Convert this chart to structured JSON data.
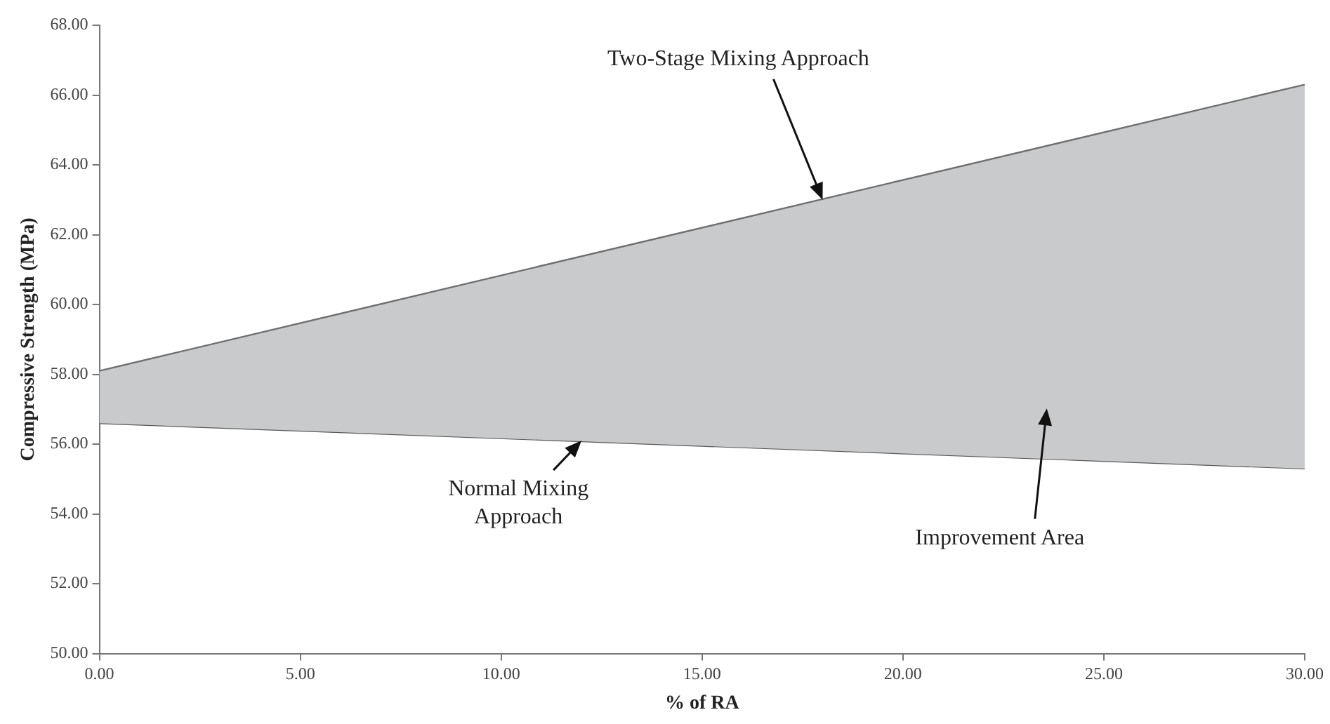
{
  "chart_data": {
    "type": "line",
    "xlabel": "% of RA",
    "ylabel": "Compressive Strength (MPa)",
    "x": [
      0,
      30
    ],
    "series": [
      {
        "type": "line",
        "color": "#5a5a5a",
        "values": [
          56.6,
          55.3
        ]
      },
      {
        "type": "area",
        "color": "#c8cacc",
        "values": [
          58.1,
          66.3
        ]
      }
    ],
    "xlim": [
      0,
      30
    ],
    "xticks": [
      {
        "value": 0,
        "label": "0.00"
      },
      {
        "value": 5,
        "label": "5.00"
      },
      {
        "value": 10,
        "label": "10.00"
      },
      {
        "value": 15,
        "label": "15.00"
      },
      {
        "value": 20,
        "label": "20.00"
      },
      {
        "value": 25,
        "label": "25.00"
      },
      {
        "value": 30,
        "label": "30.00"
      }
    ],
    "ylim": [
      50,
      68
    ],
    "yticks": [
      {
        "value": 50,
        "label": "50.00"
      },
      {
        "value": 52,
        "label": "52.00"
      },
      {
        "value": 54,
        "label": "54.00"
      },
      {
        "value": 56,
        "label": "56.00"
      },
      {
        "value": 58,
        "label": "58.00"
      },
      {
        "value": 60,
        "label": "60.00"
      },
      {
        "value": 62,
        "label": "62.00"
      },
      {
        "value": 64,
        "label": "64.00"
      },
      {
        "value": 66,
        "label": "66.00"
      },
      {
        "value": 68,
        "label": "68.00"
      }
    ],
    "grid": false,
    "legend": false,
    "marker": "none",
    "line_style": "solid",
    "annotations": [
      {
        "text": "Two-Stage Mixing Approach",
        "x": 18,
        "y": 63.0
      },
      {
        "text": "Normal Mixing\nApproach",
        "x": 12,
        "y": 56.1
      },
      "Improvement Area"
    ]
  }
}
